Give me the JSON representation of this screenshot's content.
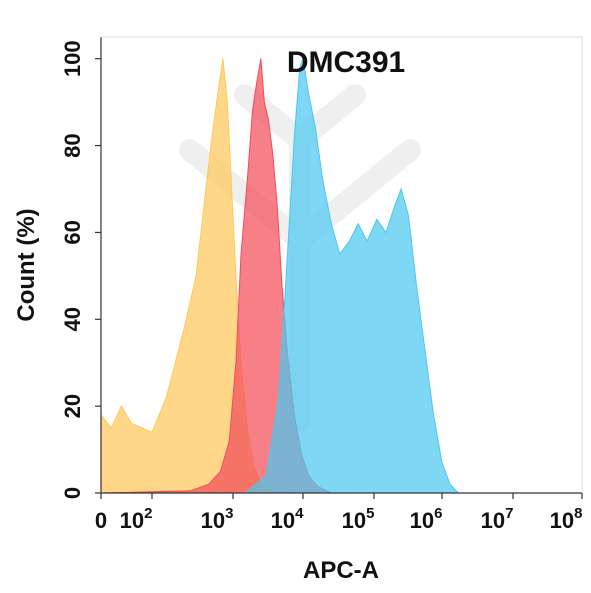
{
  "chart_data": {
    "type": "area",
    "title": "DMC391",
    "xlabel": "APC-A",
    "ylabel": "Count  (%)",
    "xscale": "biexponential",
    "xlim": [
      0,
      100000000
    ],
    "ylim": [
      0,
      105
    ],
    "x_ticks": [
      {
        "base": "0",
        "exp": ""
      },
      {
        "base": "10",
        "exp": "2"
      },
      {
        "base": "10",
        "exp": "3"
      },
      {
        "base": "10",
        "exp": "4"
      },
      {
        "base": "10",
        "exp": "5"
      },
      {
        "base": "10",
        "exp": "6"
      },
      {
        "base": "10",
        "exp": "7"
      },
      {
        "base": "10",
        "exp": "8"
      }
    ],
    "y_ticks": [
      "0",
      "20",
      "40",
      "60",
      "80",
      "100"
    ],
    "grid": false,
    "series": [
      {
        "color": "#fdc95a",
        "points": [
          [
            0,
            18
          ],
          [
            20,
            15
          ],
          [
            40,
            20
          ],
          [
            60,
            16
          ],
          [
            100,
            14
          ],
          [
            150,
            22
          ],
          [
            250,
            38
          ],
          [
            350,
            50
          ],
          [
            450,
            68
          ],
          [
            550,
            82
          ],
          [
            650,
            92
          ],
          [
            750,
            100
          ],
          [
            850,
            90
          ],
          [
            950,
            72
          ],
          [
            1100,
            50
          ],
          [
            1300,
            30
          ],
          [
            1600,
            15
          ],
          [
            2000,
            6
          ],
          [
            2500,
            2
          ],
          [
            3500,
            0.5
          ],
          [
            6000,
            0
          ]
        ]
      },
      {
        "color": "#f24d5a",
        "points": [
          [
            0,
            0
          ],
          [
            300,
            0.5
          ],
          [
            500,
            2
          ],
          [
            700,
            5
          ],
          [
            900,
            12
          ],
          [
            1100,
            30
          ],
          [
            1300,
            55
          ],
          [
            1600,
            72
          ],
          [
            1900,
            88
          ],
          [
            2200,
            95
          ],
          [
            2500,
            100
          ],
          [
            2800,
            90
          ],
          [
            3200,
            86
          ],
          [
            3700,
            78
          ],
          [
            4300,
            66
          ],
          [
            5000,
            48
          ],
          [
            6000,
            32
          ],
          [
            7500,
            18
          ],
          [
            9500,
            9
          ],
          [
            12000,
            4
          ],
          [
            16000,
            1.5
          ],
          [
            25000,
            0
          ]
        ]
      },
      {
        "color": "#4cc7f0",
        "points": [
          [
            0,
            0
          ],
          [
            1500,
            0
          ],
          [
            3000,
            4
          ],
          [
            4500,
            22
          ],
          [
            6000,
            55
          ],
          [
            7500,
            82
          ],
          [
            9000,
            98
          ],
          [
            10000,
            100
          ],
          [
            12000,
            92
          ],
          [
            15000,
            84
          ],
          [
            19000,
            72
          ],
          [
            25000,
            62
          ],
          [
            33000,
            55
          ],
          [
            45000,
            58
          ],
          [
            60000,
            62
          ],
          [
            80000,
            58
          ],
          [
            110000,
            63
          ],
          [
            150000,
            60
          ],
          [
            200000,
            66
          ],
          [
            250000,
            70
          ],
          [
            320000,
            64
          ],
          [
            420000,
            48
          ],
          [
            550000,
            34
          ],
          [
            750000,
            18
          ],
          [
            1000000,
            7
          ],
          [
            1300000,
            2
          ],
          [
            1700000,
            0
          ]
        ]
      }
    ]
  }
}
